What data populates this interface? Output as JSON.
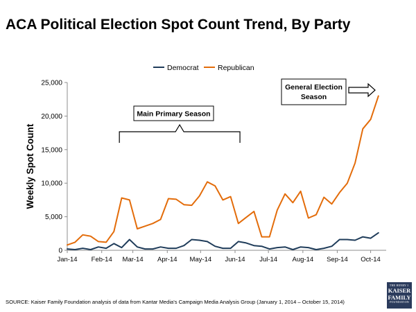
{
  "title": "ACA Political Election Spot Count Trend, By Party",
  "source": "SOURCE: Kaiser Family Foundation analysis of data from Kantar Media's Campaign Media Analysis Group (January 1, 2014 – October 15, 2014)",
  "logo": {
    "top": "THE HENRY J.",
    "line1": "KAISER",
    "line2": "FAMILY",
    "bottom": "FOUNDATION"
  },
  "chart_data": {
    "type": "line",
    "title": "ACA Political Election Spot Count Trend, By Party",
    "xlabel": "",
    "ylabel": "Weekly Spot Count",
    "ylim": [
      0,
      25000
    ],
    "yticks": [
      0,
      5000,
      10000,
      15000,
      20000,
      25000
    ],
    "ytick_labels": [
      "0",
      "5,000",
      "10,000",
      "15,000",
      "20,000",
      "25,000"
    ],
    "x_week_range": [
      0,
      41
    ],
    "xticks": [
      {
        "week": 0,
        "label": "Jan-14"
      },
      {
        "week": 4.43,
        "label": "Feb-14"
      },
      {
        "week": 8.43,
        "label": "Mar-14"
      },
      {
        "week": 12.86,
        "label": "Apr-14"
      },
      {
        "week": 17.14,
        "label": "May-14"
      },
      {
        "week": 21.57,
        "label": "Jun-14"
      },
      {
        "week": 25.86,
        "label": "Jul-14"
      },
      {
        "week": 30.29,
        "label": "Aug-14"
      },
      {
        "week": 34.71,
        "label": "Sep-14"
      },
      {
        "week": 39,
        "label": "Oct-14"
      }
    ],
    "grid": false,
    "legend_position": "top-center",
    "series": [
      {
        "name": "Democrat",
        "color": "#1f3c5a",
        "values": [
          200,
          100,
          300,
          100,
          500,
          300,
          1000,
          400,
          1600,
          500,
          200,
          200,
          500,
          300,
          300,
          700,
          1600,
          1500,
          1300,
          600,
          300,
          300,
          1300,
          1100,
          700,
          600,
          200,
          400,
          500,
          100,
          500,
          400,
          100,
          300,
          600,
          1600,
          1600,
          1500,
          2000,
          1800,
          2600
        ]
      },
      {
        "name": "Republican",
        "color": "#e36c0a",
        "values": [
          800,
          1200,
          2300,
          2100,
          1300,
          1200,
          2800,
          7800,
          7500,
          3200,
          3600,
          4000,
          4600,
          7700,
          7600,
          6800,
          6700,
          8100,
          10200,
          9600,
          7500,
          8000,
          4000,
          4900,
          5800,
          2000,
          2000,
          6000,
          8400,
          7100,
          8800,
          4800,
          5300,
          7900,
          6900,
          8600,
          10000,
          13000,
          18100,
          19500,
          23000
        ]
      }
    ],
    "annotations": [
      {
        "label": "Main Primary Season",
        "type": "bracket",
        "from_week": 6.7,
        "to_week": 22.2
      },
      {
        "label_line1": "General Election",
        "label_line2": "Season",
        "type": "arrow-box",
        "at_week": 35.5
      }
    ]
  }
}
